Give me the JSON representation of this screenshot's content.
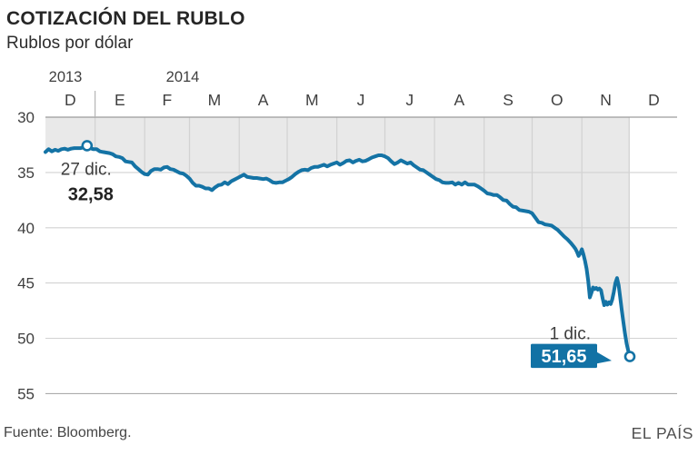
{
  "header": {
    "title": "COTIZACIÓN DEL RUBLO",
    "subtitle": "Rublos por dólar"
  },
  "footer": {
    "source": "Fuente: Bloomberg.",
    "brand": "EL PAÍS"
  },
  "colors": {
    "line": "#1473a5",
    "annotation_box": "#1272a5",
    "area_fill": "#e9e9e9",
    "grid_light": "#d2d2d2",
    "grid_top": "#9c9c9c",
    "grid_bottom": "#ababab",
    "year_tick": "#b5b5b5",
    "axis_text": "#3f3f3f",
    "annotation_text": "#3d3d3d",
    "annotation_value_text": "#222222",
    "callout_value_text": "#ffffff",
    "marker_fill": "#ffffff"
  },
  "chart_data": {
    "type": "area",
    "title": "COTIZACIÓN DEL RUBLO",
    "subtitle": "Rublos por dólar",
    "ylabel": "Rublos por dólar",
    "y_inverted": true,
    "ylim": [
      30,
      55
    ],
    "y_ticks": [
      30,
      35,
      40,
      45,
      50,
      55
    ],
    "grid": true,
    "legend": "none",
    "x_years": [
      "2013",
      "2014"
    ],
    "months": [
      "D",
      "E",
      "F",
      "M",
      "A",
      "M",
      "J",
      "J",
      "A",
      "S",
      "O",
      "N",
      "D"
    ],
    "month_boundary_days": [
      0,
      31,
      62,
      90,
      121,
      151,
      182,
      212,
      243,
      274,
      304,
      335,
      365,
      395
    ],
    "x_range_days": [
      0,
      395
    ],
    "data_end_day": 365,
    "series": [
      {
        "name": "Rublos por dólar",
        "points": [
          [
            0,
            33.15
          ],
          [
            2,
            32.9
          ],
          [
            4,
            33.1
          ],
          [
            6,
            32.95
          ],
          [
            8,
            33.05
          ],
          [
            10,
            32.9
          ],
          [
            12,
            32.85
          ],
          [
            14,
            32.95
          ],
          [
            16,
            32.85
          ],
          [
            18,
            32.8
          ],
          [
            20,
            32.8
          ],
          [
            22,
            32.8
          ],
          [
            24,
            32.72
          ],
          [
            26,
            32.58
          ],
          [
            28,
            32.8
          ],
          [
            30,
            32.9
          ],
          [
            32,
            32.9
          ],
          [
            34,
            33.1
          ],
          [
            36,
            33.15
          ],
          [
            38,
            33.2
          ],
          [
            40,
            33.25
          ],
          [
            42,
            33.35
          ],
          [
            44,
            33.55
          ],
          [
            46,
            33.6
          ],
          [
            48,
            33.7
          ],
          [
            50,
            34.0
          ],
          [
            52,
            34.05
          ],
          [
            54,
            34.1
          ],
          [
            56,
            34.45
          ],
          [
            58,
            34.7
          ],
          [
            60,
            34.95
          ],
          [
            62,
            35.15
          ],
          [
            64,
            35.2
          ],
          [
            66,
            34.85
          ],
          [
            68,
            34.7
          ],
          [
            70,
            34.7
          ],
          [
            72,
            34.75
          ],
          [
            74,
            34.55
          ],
          [
            76,
            34.5
          ],
          [
            78,
            34.7
          ],
          [
            80,
            34.75
          ],
          [
            82,
            34.9
          ],
          [
            84,
            35.05
          ],
          [
            86,
            35.1
          ],
          [
            88,
            35.3
          ],
          [
            90,
            35.55
          ],
          [
            92,
            35.95
          ],
          [
            94,
            36.2
          ],
          [
            96,
            36.2
          ],
          [
            98,
            36.3
          ],
          [
            100,
            36.45
          ],
          [
            102,
            36.45
          ],
          [
            104,
            36.6
          ],
          [
            106,
            36.35
          ],
          [
            108,
            36.15
          ],
          [
            110,
            36.1
          ],
          [
            112,
            35.9
          ],
          [
            114,
            36.05
          ],
          [
            116,
            35.8
          ],
          [
            118,
            35.65
          ],
          [
            120,
            35.5
          ],
          [
            122,
            35.35
          ],
          [
            124,
            35.2
          ],
          [
            126,
            35.4
          ],
          [
            128,
            35.45
          ],
          [
            130,
            35.5
          ],
          [
            132,
            35.5
          ],
          [
            134,
            35.55
          ],
          [
            136,
            35.6
          ],
          [
            138,
            35.55
          ],
          [
            140,
            35.7
          ],
          [
            142,
            35.9
          ],
          [
            144,
            35.95
          ],
          [
            146,
            35.9
          ],
          [
            148,
            35.9
          ],
          [
            150,
            35.75
          ],
          [
            152,
            35.6
          ],
          [
            154,
            35.4
          ],
          [
            156,
            35.15
          ],
          [
            158,
            34.95
          ],
          [
            160,
            34.8
          ],
          [
            162,
            34.75
          ],
          [
            164,
            34.8
          ],
          [
            166,
            34.6
          ],
          [
            168,
            34.5
          ],
          [
            170,
            34.5
          ],
          [
            172,
            34.4
          ],
          [
            174,
            34.3
          ],
          [
            176,
            34.45
          ],
          [
            178,
            34.3
          ],
          [
            180,
            34.2
          ],
          [
            182,
            34.1
          ],
          [
            184,
            34.3
          ],
          [
            186,
            34.15
          ],
          [
            188,
            33.95
          ],
          [
            190,
            33.9
          ],
          [
            192,
            34.1
          ],
          [
            194,
            33.95
          ],
          [
            196,
            33.85
          ],
          [
            198,
            34.0
          ],
          [
            200,
            33.95
          ],
          [
            202,
            33.8
          ],
          [
            204,
            33.65
          ],
          [
            206,
            33.55
          ],
          [
            208,
            33.45
          ],
          [
            210,
            33.45
          ],
          [
            212,
            33.55
          ],
          [
            214,
            33.7
          ],
          [
            216,
            34.0
          ],
          [
            218,
            34.25
          ],
          [
            220,
            34.1
          ],
          [
            222,
            33.9
          ],
          [
            224,
            34.05
          ],
          [
            226,
            34.2
          ],
          [
            228,
            34.1
          ],
          [
            230,
            34.35
          ],
          [
            232,
            34.55
          ],
          [
            234,
            34.75
          ],
          [
            236,
            34.8
          ],
          [
            238,
            35.0
          ],
          [
            240,
            35.2
          ],
          [
            242,
            35.4
          ],
          [
            244,
            35.6
          ],
          [
            246,
            35.7
          ],
          [
            248,
            35.9
          ],
          [
            250,
            35.95
          ],
          [
            252,
            35.95
          ],
          [
            254,
            35.9
          ],
          [
            256,
            36.1
          ],
          [
            258,
            35.95
          ],
          [
            260,
            36.1
          ],
          [
            262,
            35.9
          ],
          [
            264,
            36.1
          ],
          [
            266,
            36.1
          ],
          [
            268,
            36.1
          ],
          [
            270,
            36.25
          ],
          [
            272,
            36.45
          ],
          [
            274,
            36.65
          ],
          [
            276,
            36.9
          ],
          [
            278,
            36.95
          ],
          [
            280,
            37.05
          ],
          [
            282,
            37.05
          ],
          [
            284,
            37.25
          ],
          [
            286,
            37.5
          ],
          [
            288,
            37.55
          ],
          [
            290,
            37.85
          ],
          [
            292,
            38.1
          ],
          [
            294,
            38.15
          ],
          [
            296,
            38.4
          ],
          [
            298,
            38.45
          ],
          [
            300,
            38.5
          ],
          [
            302,
            38.55
          ],
          [
            304,
            38.7
          ],
          [
            306,
            39.1
          ],
          [
            308,
            39.5
          ],
          [
            310,
            39.55
          ],
          [
            312,
            39.7
          ],
          [
            314,
            39.75
          ],
          [
            316,
            39.8
          ],
          [
            318,
            40.0
          ],
          [
            320,
            40.2
          ],
          [
            322,
            40.5
          ],
          [
            324,
            40.8
          ],
          [
            326,
            41.05
          ],
          [
            328,
            41.35
          ],
          [
            330,
            41.7
          ],
          [
            331,
            41.9
          ],
          [
            332,
            42.2
          ],
          [
            333,
            42.55
          ],
          [
            334,
            42.3
          ],
          [
            335,
            41.95
          ],
          [
            336,
            42.4
          ],
          [
            337,
            43.0
          ],
          [
            338,
            43.7
          ],
          [
            339,
            44.8
          ],
          [
            340,
            46.3
          ],
          [
            341,
            45.9
          ],
          [
            342,
            45.4
          ],
          [
            343,
            45.55
          ],
          [
            344,
            45.45
          ],
          [
            345,
            45.6
          ],
          [
            346,
            45.5
          ],
          [
            347,
            45.65
          ],
          [
            348,
            46.4
          ],
          [
            349,
            47.0
          ],
          [
            350,
            46.7
          ],
          [
            351,
            46.95
          ],
          [
            352,
            46.75
          ],
          [
            353,
            46.9
          ],
          [
            354,
            46.5
          ],
          [
            355,
            45.8
          ],
          [
            356,
            45.0
          ],
          [
            357,
            44.55
          ],
          [
            358,
            45.2
          ],
          [
            359,
            46.3
          ],
          [
            360,
            47.5
          ],
          [
            361,
            48.6
          ],
          [
            362,
            49.6
          ],
          [
            363,
            50.5
          ],
          [
            364,
            51.1
          ],
          [
            365,
            51.65
          ]
        ]
      }
    ],
    "annotations": [
      {
        "style": "plain",
        "label": "27 dic.",
        "value_label": "32,58",
        "day": 26,
        "value": 32.58
      },
      {
        "style": "boxed",
        "label": "1 dic.",
        "value_label": "51,65",
        "day": 365,
        "value": 51.65
      }
    ]
  }
}
